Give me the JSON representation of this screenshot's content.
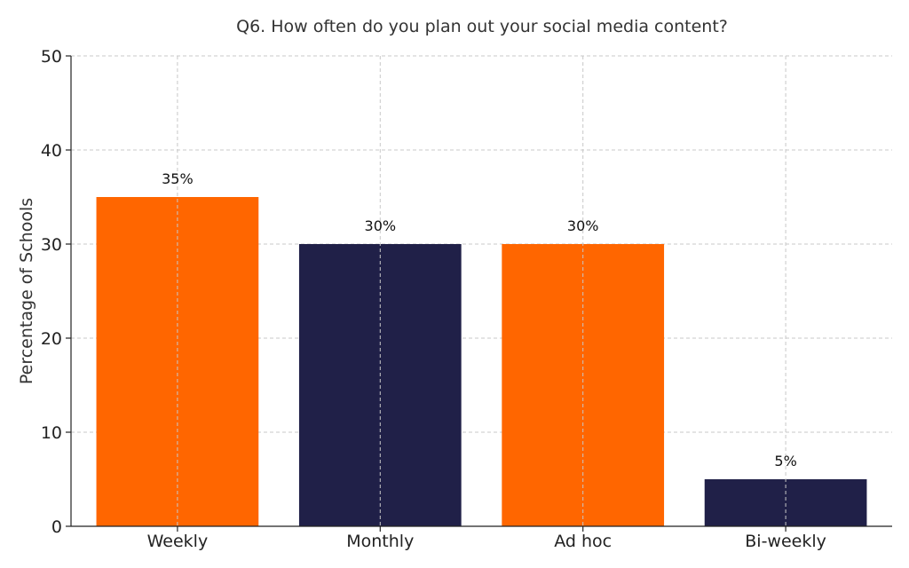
{
  "chart_data": {
    "type": "bar",
    "title": "Q6. How often do you plan out your social media content?",
    "xlabel": "",
    "ylabel": "Percentage of Schools",
    "categories": [
      "Weekly",
      "Monthly",
      "Ad hoc",
      "Bi-weekly"
    ],
    "values": [
      35,
      30,
      30,
      5
    ],
    "value_labels": [
      "35%",
      "30%",
      "30%",
      "5%"
    ],
    "colors": [
      "#ff6600",
      "#202048",
      "#ff6600",
      "#202048"
    ],
    "ylim": [
      0,
      50
    ],
    "yticks": [
      0,
      10,
      20,
      30,
      40,
      50
    ],
    "grid": true,
    "legend": "none"
  }
}
